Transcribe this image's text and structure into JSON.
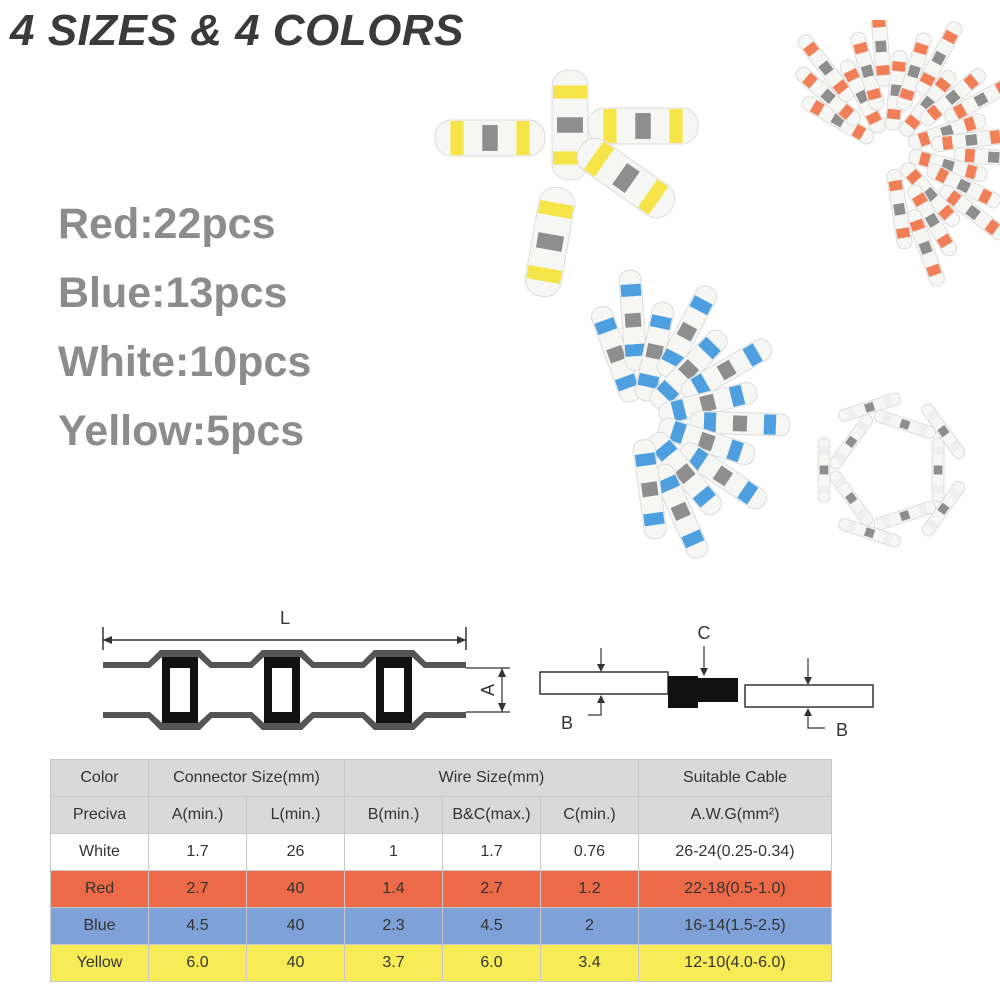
{
  "headline": "4 SIZES & 4 COLORS",
  "counts": [
    "Red:22pcs",
    "Blue:13pcs",
    "White:10pcs",
    "Yellow:5pcs"
  ],
  "colors": {
    "yellow": "#f5e22a",
    "red": "#ee6a3c",
    "blue": "#2f8fdc",
    "white": "#9a9a9a",
    "silver": "#8e8e8e"
  },
  "diagram": {
    "length_label": "L",
    "diameter_label": "A",
    "core_label": "C",
    "wire_label": "B"
  },
  "table": {
    "header_row1": [
      "Color",
      "Connector Size(mm)",
      "Wire Size(mm)",
      "Suitable Cable"
    ],
    "header_row2": [
      "Preciva",
      "A(min.)",
      "L(min.)",
      "B(min.)",
      "B&C(max.)",
      "C(min.)",
      "A.W.G(mm²)"
    ],
    "rows": [
      [
        "White",
        "1.7",
        "26",
        "1",
        "1.7",
        "0.76",
        "26-24(0.25-0.34)"
      ],
      [
        "Red",
        "2.7",
        "40",
        "1.4",
        "2.7",
        "1.2",
        "22-18(0.5-1.0)"
      ],
      [
        "Blue",
        "4.5",
        "40",
        "2.3",
        "4.5",
        "2",
        "16-14(1.5-2.5)"
      ],
      [
        "Yellow",
        "6.0",
        "40",
        "3.7",
        "6.0",
        "3.4",
        "12-10(4.0-6.0)"
      ]
    ]
  }
}
